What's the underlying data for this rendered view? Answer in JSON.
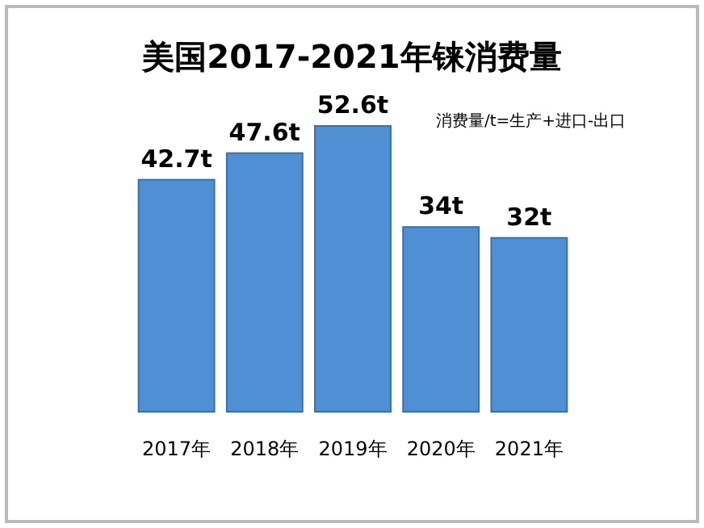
{
  "chart_data": {
    "type": "bar",
    "title": "美国2017-2021年铼消费量",
    "annotations": [
      "消费量/t=生产+进口-出口"
    ],
    "categories": [
      "2017年",
      "2018年",
      "2019年",
      "2020年",
      "2021年"
    ],
    "values": [
      42.7,
      47.6,
      52.6,
      34,
      32
    ],
    "value_labels": [
      "42.7t",
      "47.6t",
      "52.6t",
      "34t",
      "32t"
    ],
    "color": "#4f8fd3"
  }
}
